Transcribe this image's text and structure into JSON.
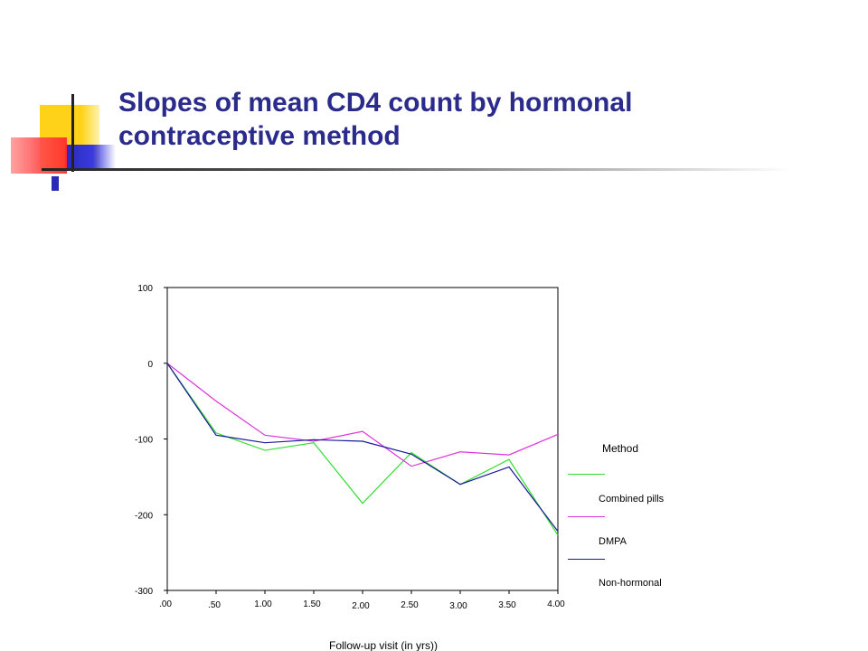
{
  "slide": {
    "title": "Slopes of mean CD4 count by hormonal contraceptive method"
  },
  "chart_data": {
    "type": "line",
    "x": [
      0,
      0.5,
      1.0,
      1.5,
      2.0,
      2.5,
      3.0,
      3.5,
      4.0
    ],
    "x_tick_labels": [
      ".00",
      ".50",
      "1.00",
      "1.50",
      "2.00",
      "2.50",
      "3.00",
      "3.50",
      "4.00"
    ],
    "y_tick_labels": [
      "100",
      "0",
      "-100",
      "-200",
      "-300"
    ],
    "y_ticks": [
      100,
      0,
      -100,
      -200,
      -300
    ],
    "xlabel": "Follow-up visit (in yrs))",
    "ylabel": "",
    "xlim": [
      0,
      4
    ],
    "ylim": [
      -300,
      100
    ],
    "grid": false,
    "legend": {
      "title": "Method",
      "placement": "right"
    },
    "series": [
      {
        "name": "Combined pills",
        "color": "#33dd33",
        "values": [
          0,
          -92,
          -115,
          -105,
          -185,
          -118,
          -160,
          -127,
          -227
        ]
      },
      {
        "name": "DMPA",
        "color": "#dd33dd",
        "values": [
          0,
          -50,
          -95,
          -103,
          -90,
          -136,
          -117,
          -121,
          -94
        ]
      },
      {
        "name": "Non-hormonal",
        "color": "#1a1a99",
        "values": [
          0,
          -95,
          -105,
          -101,
          -103,
          -120,
          -160,
          -137,
          -222
        ]
      }
    ]
  }
}
